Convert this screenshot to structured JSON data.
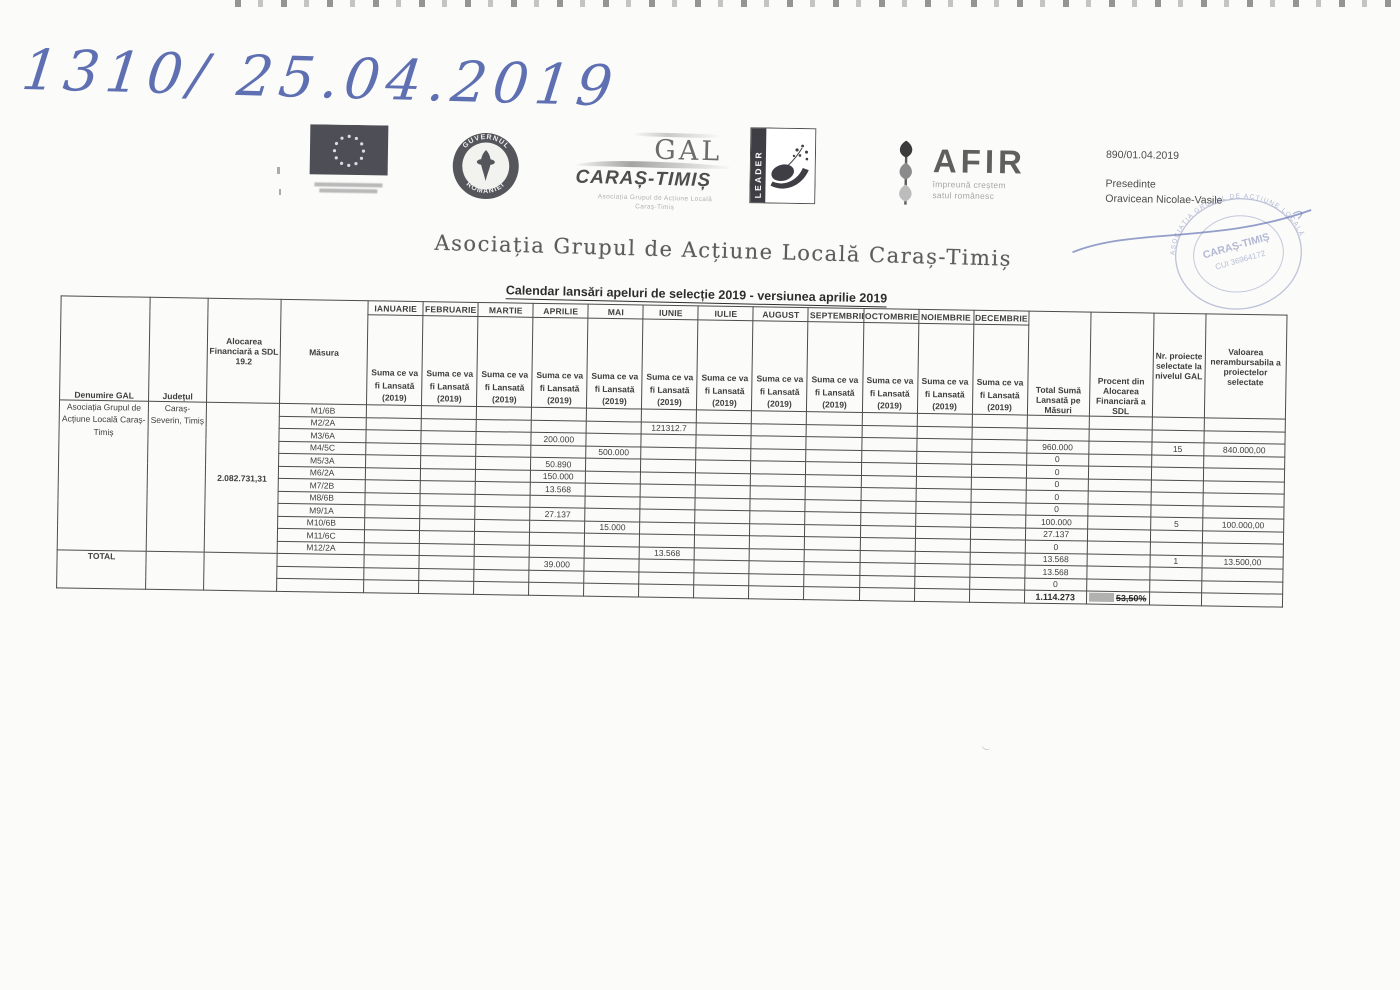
{
  "annotations": {
    "handwritten_number": "1310/ 25.04.2019"
  },
  "letterhead": {
    "gov_seal": {
      "arc_top": "GUVERNUL",
      "arc_bottom": "ROMÂNIEI"
    },
    "gal_logo": {
      "name": "GAL",
      "region": "CARAȘ-TIMIȘ",
      "subtext_line1": "Asociația Grupul de Acțiune Locală",
      "subtext_line2": "Caraș-Timiș"
    },
    "leader_logo": {
      "label": "LEADER"
    },
    "afir_logo": {
      "name": "AFIR",
      "tagline_line1": "împreună creștem",
      "tagline_line2": "satul românesc"
    },
    "ref_number": "890/01.04.2019",
    "signer_title": "Presedinte",
    "signer_name": "Oravicean Nicolae-Vasile",
    "stamp": {
      "arc_text": "ASOCIAȚIA GRUPUL DE ACȚIUNE LOCALĂ",
      "name": "CARAȘ-TIMIȘ",
      "cui": "CUI 36964172",
      "ink_color": "#6b77ad"
    }
  },
  "title": "Asociația Grupul de Acțiune Locală Caraș-Timiș",
  "heading": "Calendar lansări apeluri de selecție 2019 - versiunea aprilie 2019",
  "table": {
    "col_headers": {
      "denumire": "Denumire GAL",
      "judet": "Județul",
      "alocare": "Alocarea Financiară a SDL 19.2",
      "masura": "Măsura",
      "total": "Total Sumă Lansată pe Măsuri",
      "procent": "Procent din Alocarea Financiară a SDL",
      "nr_proiecte": "Nr. proiecte selectate la nivelul GAL",
      "valoare": "Valoarea nerambursabila a proiectelor selectate"
    },
    "months": [
      "IANUARIE",
      "FEBRUARIE",
      "MARTIE",
      "APRILIE",
      "MAI",
      "IUNIE",
      "IULIE",
      "AUGUST",
      "SEPTEMBRIE",
      "OCTOMBRIE",
      "NOIEMBRIE",
      "DECEMBRIE"
    ],
    "month_subheader": "Suma ce va fi Lansată (2019)",
    "gal": {
      "name": "Asociația Grupul de Acțiune Locală Caraș-Timiș",
      "judet": "Caraș-Severin, Timiș",
      "alocare": "2.082.731,31"
    },
    "rows": [
      {
        "masura": "M1/6B",
        "values": [
          "",
          "",
          "",
          "",
          "",
          "",
          "",
          "",
          "",
          "",
          "",
          ""
        ],
        "total": "",
        "nr": "",
        "valoare": ""
      },
      {
        "masura": "M2/2A",
        "values": [
          "",
          "",
          "",
          "",
          "",
          "121312.7",
          "",
          "",
          "",
          "",
          "",
          ""
        ],
        "total": "",
        "nr": "",
        "valoare": ""
      },
      {
        "masura": "M3/6A",
        "values": [
          "",
          "",
          "",
          "200.000",
          "",
          "",
          "",
          "",
          "",
          "",
          "",
          ""
        ],
        "total": "960.000",
        "nr": "15",
        "valoare": "840.000,00"
      },
      {
        "masura": "M4/5C",
        "values": [
          "",
          "",
          "",
          "",
          "500.000",
          "",
          "",
          "",
          "",
          "",
          "",
          ""
        ],
        "total": "0",
        "nr": "",
        "valoare": ""
      },
      {
        "masura": "M5/3A",
        "values": [
          "",
          "",
          "",
          "50.890",
          "",
          "",
          "",
          "",
          "",
          "",
          "",
          ""
        ],
        "total": "0",
        "nr": "",
        "valoare": ""
      },
      {
        "masura": "M6/2A",
        "values": [
          "",
          "",
          "",
          "150.000",
          "",
          "",
          "",
          "",
          "",
          "",
          "",
          ""
        ],
        "total": "0",
        "nr": "",
        "valoare": ""
      },
      {
        "masura": "M7/2B",
        "values": [
          "",
          "",
          "",
          "13.568",
          "",
          "",
          "",
          "",
          "",
          "",
          "",
          ""
        ],
        "total": "0",
        "nr": "",
        "valoare": ""
      },
      {
        "masura": "M8/6B",
        "values": [
          "",
          "",
          "",
          "",
          "",
          "",
          "",
          "",
          "",
          "",
          "",
          ""
        ],
        "total": "0",
        "nr": "",
        "valoare": ""
      },
      {
        "masura": "M9/1A",
        "values": [
          "",
          "",
          "",
          "27.137",
          "",
          "",
          "",
          "",
          "",
          "",
          "",
          ""
        ],
        "total": "100.000",
        "nr": "5",
        "valoare": "100.000,00"
      },
      {
        "masura": "M10/6B",
        "values": [
          "",
          "",
          "",
          "",
          "15.000",
          "",
          "",
          "",
          "",
          "",
          "",
          ""
        ],
        "total": "27.137",
        "nr": "",
        "valoare": ""
      },
      {
        "masura": "M11/6C",
        "values": [
          "",
          "",
          "",
          "",
          "",
          "",
          "",
          "",
          "",
          "",
          "",
          ""
        ],
        "total": "0",
        "nr": "",
        "valoare": ""
      },
      {
        "masura": "M12/2A",
        "values": [
          "",
          "",
          "",
          "",
          "",
          "13.568",
          "",
          "",
          "",
          "",
          "",
          ""
        ],
        "total": "13.568",
        "nr": "1",
        "valoare": "13.500,00"
      },
      {
        "masura": "",
        "values": [
          "",
          "",
          "",
          "39.000",
          "",
          "",
          "",
          "",
          "",
          "",
          "",
          ""
        ],
        "total": "13.568",
        "nr": "",
        "valoare": ""
      },
      {
        "masura": "",
        "values": [
          "",
          "",
          "",
          "",
          "",
          "",
          "",
          "",
          "",
          "",
          "",
          ""
        ],
        "total": "0",
        "nr": "",
        "valoare": ""
      }
    ],
    "total_row": {
      "label": "TOTAL",
      "total": "1.114.273",
      "procent": "53,50%"
    }
  }
}
